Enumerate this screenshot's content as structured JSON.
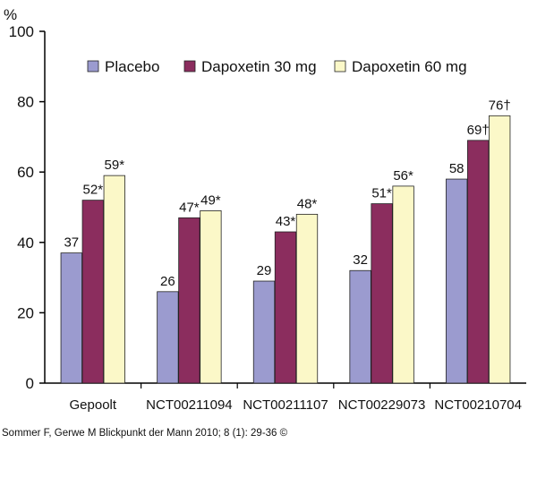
{
  "chart_data": {
    "type": "bar",
    "ylabel": "%",
    "ylim": [
      0,
      100
    ],
    "yticks": [
      0,
      20,
      40,
      60,
      80,
      100
    ],
    "grid": false,
    "legend_position": "top",
    "categories": [
      "Gepoolt",
      "NCT00211094",
      "NCT00211107",
      "NCT00229073",
      "NCT00210704"
    ],
    "series": [
      {
        "name": "Placebo",
        "color": "#9b9bcf",
        "values": [
          37,
          26,
          29,
          32,
          58
        ],
        "labels": [
          "37",
          "26",
          "29",
          "32",
          "58"
        ]
      },
      {
        "name": "Dapoxetin 30 mg",
        "color": "#8b2d5e",
        "values": [
          52,
          47,
          43,
          51,
          69
        ],
        "labels": [
          "52*",
          "47*",
          "43*",
          "51*",
          "69†"
        ]
      },
      {
        "name": "Dapoxetin 60 mg",
        "color": "#fbf8c8",
        "values": [
          59,
          49,
          48,
          56,
          76
        ],
        "labels": [
          "59*",
          "49*",
          "48*",
          "56*",
          "76†"
        ]
      }
    ]
  },
  "source_text": "Sommer F, Gerwe M Blickpunkt der Mann 2010; 8 (1): 29-36 ©"
}
